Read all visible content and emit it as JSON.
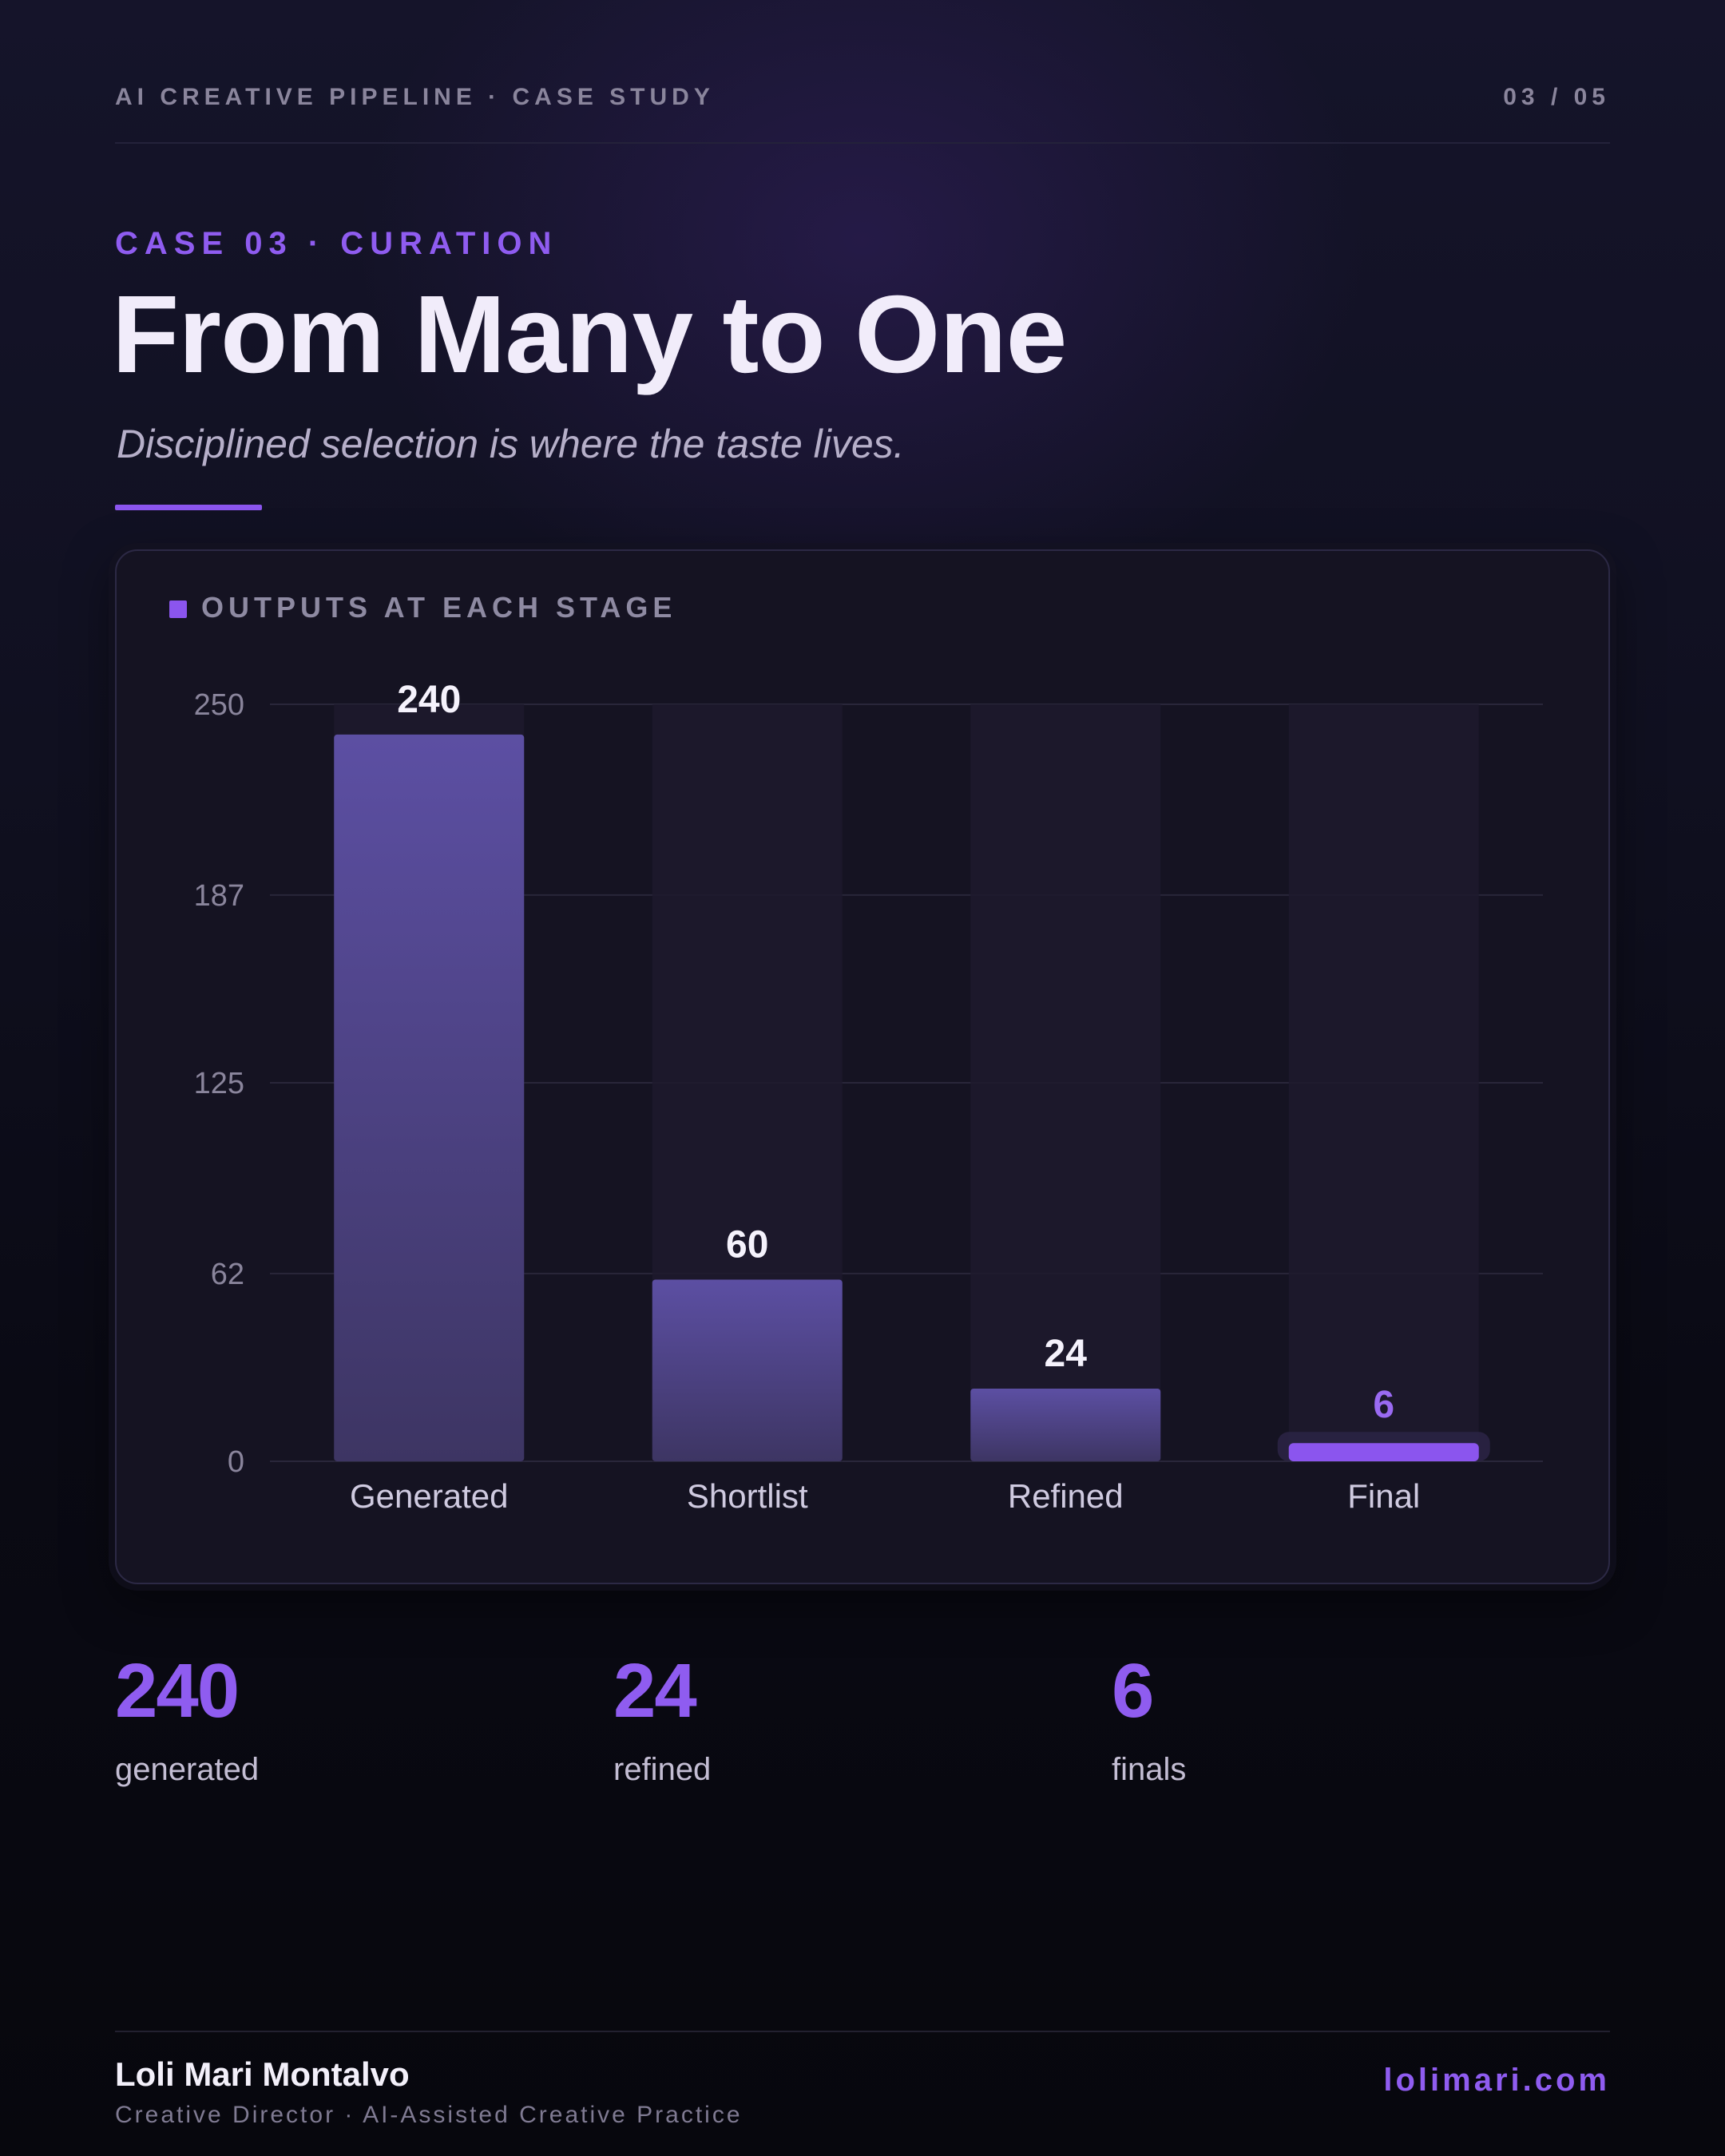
{
  "header": {
    "series_label": "AI CREATIVE PIPELINE · CASE STUDY",
    "page_indicator": "03 / 05"
  },
  "hero": {
    "eyebrow": "CASE 03 · CURATION",
    "title": "From Many to One",
    "subtitle": "Disciplined selection is where the taste lives."
  },
  "chart_card": {
    "heading": "OUTPUTS AT EACH STAGE"
  },
  "chart_data": {
    "type": "bar",
    "title": "OUTPUTS AT EACH STAGE",
    "categories": [
      "Generated",
      "Shortlist",
      "Refined",
      "Final"
    ],
    "values": [
      240,
      60,
      24,
      6
    ],
    "data_labels": [
      "240",
      "60",
      "24",
      "6"
    ],
    "highlight_index": 3,
    "y_ticks": [
      0,
      62,
      125,
      187,
      250
    ],
    "ylim": [
      0,
      250
    ],
    "grid": true,
    "xlabel": "",
    "ylabel": "",
    "colors": {
      "bar_top": "#5c4fa3",
      "bar_bottom": "#3d3563",
      "highlight": "#8b55ee",
      "highlight_label": "#9a6af2",
      "track": "#1d1a2d",
      "grid": "#29263a",
      "tick_text": "#8a859c",
      "category_text": "#cfcae0",
      "value_text": "#f5f2fc"
    }
  },
  "stats": [
    {
      "value": "240",
      "label": "generated"
    },
    {
      "value": "24",
      "label": "refined"
    },
    {
      "value": "6",
      "label": "finals"
    }
  ],
  "footer": {
    "author": "Loli Mari Montalvo",
    "role": "Creative Director · AI-Assisted Creative Practice",
    "website": "lolimari.com"
  }
}
